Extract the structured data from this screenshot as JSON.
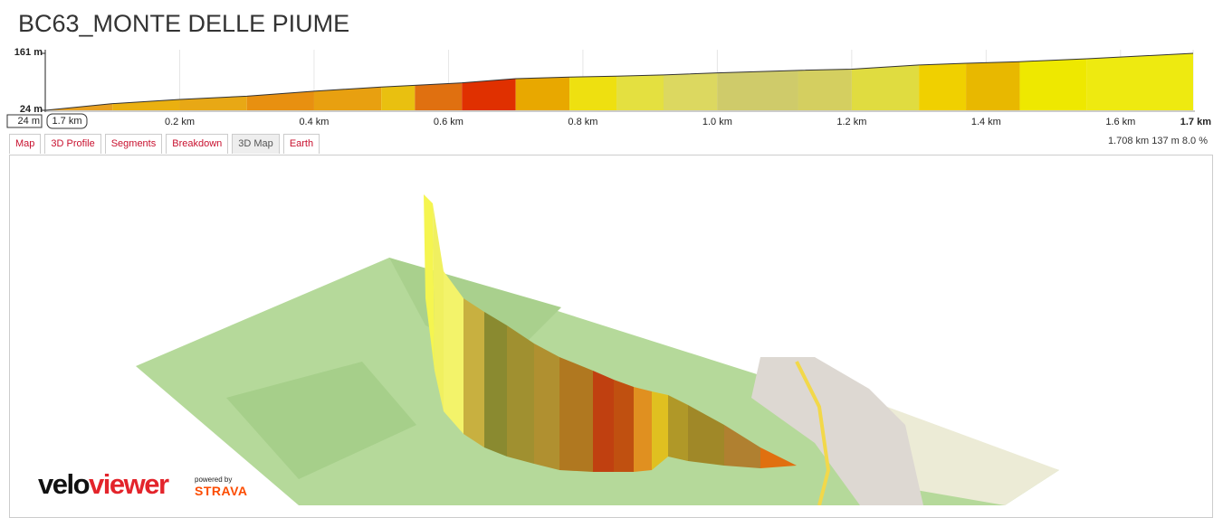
{
  "header": {
    "title": "BC63_MONTE DELLE PIUME"
  },
  "chart_data": {
    "type": "area",
    "x": [
      0,
      0.1,
      0.2,
      0.3,
      0.4,
      0.5,
      0.55,
      0.62,
      0.7,
      0.78,
      0.85,
      0.92,
      1.0,
      1.12,
      1.2,
      1.3,
      1.37,
      1.45,
      1.55,
      1.708
    ],
    "values": [
      24,
      40,
      50,
      58,
      70,
      80,
      84,
      90,
      100,
      104,
      106,
      109,
      114,
      120,
      123,
      133,
      137,
      141,
      148,
      161
    ],
    "segment_colors": [
      "#e8a020",
      "#eab010",
      "#e8a815",
      "#e89010",
      "#e8a010",
      "#e9c010",
      "#e07010",
      "#e03000",
      "#e8a800",
      "#eee010",
      "#e4e040",
      "#dcd860",
      "#cfcb6a",
      "#d4cf60",
      "#e0dc40",
      "#f0d000",
      "#e8b800",
      "#eee800",
      "#eeea10"
    ],
    "xlim": [
      0,
      1.708
    ],
    "ylim": [
      24,
      161
    ],
    "xticks": [
      {
        "value": 0.2,
        "label": "0.2 km"
      },
      {
        "value": 0.4,
        "label": "0.4 km"
      },
      {
        "value": 0.6,
        "label": "0.6 km"
      },
      {
        "value": 0.8,
        "label": "0.8 km"
      },
      {
        "value": 1.0,
        "label": "1.0 km"
      },
      {
        "value": 1.2,
        "label": "1.2 km"
      },
      {
        "value": 1.4,
        "label": "1.4 km"
      },
      {
        "value": 1.6,
        "label": "1.6 km"
      },
      {
        "value": 1.708,
        "label": "1.7 km"
      }
    ],
    "yticks": [
      {
        "value": 24,
        "label": "24 m"
      },
      {
        "value": 161,
        "label": "161 m"
      }
    ],
    "grid": true
  },
  "cursor": {
    "elevation": "24 m",
    "distance": "1.7 km"
  },
  "tabs": [
    "Map",
    "3D Profile",
    "Segments",
    "Breakdown",
    "3D Map",
    "Earth"
  ],
  "stats": "1.708 km 137 m 8.0 %",
  "branding": {
    "logo": [
      "velo",
      "viewer"
    ],
    "powered": "powered by",
    "partner": "STRAVA"
  }
}
